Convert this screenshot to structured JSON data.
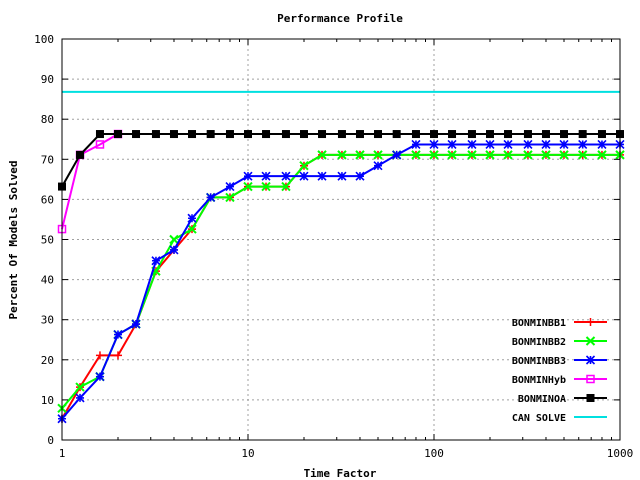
{
  "chart_data": {
    "type": "line",
    "title": "Performance Profile",
    "xlabel": "Time Factor",
    "ylabel": "Percent Of Models Solved",
    "xscale": "log",
    "xlim": [
      1,
      1000
    ],
    "ylim": [
      0,
      100
    ],
    "x_ticks": [
      1,
      10,
      100,
      1000
    ],
    "y_ticks": [
      0,
      10,
      20,
      30,
      40,
      50,
      60,
      70,
      80,
      90,
      100
    ],
    "grid": true,
    "legend_position": "bottom-right",
    "series": [
      {
        "name": "BONMINBB1",
        "color": "#ff0000",
        "marker": "plus",
        "x": [
          1,
          1.25,
          1.6,
          2,
          2.5,
          3.2,
          4,
          5,
          6.3,
          8,
          10,
          12.5,
          16,
          20,
          25,
          32,
          40,
          50,
          63,
          80,
          100,
          125,
          160,
          200,
          250,
          320,
          400,
          500,
          630,
          800,
          1000
        ],
        "y": [
          5.3,
          13.2,
          21.1,
          21.1,
          28.9,
          42.1,
          47.4,
          52.6,
          60.5,
          60.5,
          63.2,
          63.2,
          63.2,
          68.4,
          71.1,
          71.1,
          71.1,
          71.1,
          71.1,
          71.1,
          71.1,
          71.1,
          71.1,
          71.1,
          71.1,
          71.1,
          71.1,
          71.1,
          71.1,
          71.1,
          71.1
        ]
      },
      {
        "name": "BONMINBB2",
        "color": "#00ff00",
        "marker": "x",
        "x": [
          1,
          1.25,
          1.6,
          2,
          2.5,
          3.2,
          4,
          5,
          6.3,
          8,
          10,
          12.5,
          16,
          20,
          25,
          32,
          40,
          50,
          63,
          80,
          100,
          125,
          160,
          200,
          250,
          320,
          400,
          500,
          630,
          800,
          1000
        ],
        "y": [
          7.9,
          13.2,
          15.8,
          26.3,
          28.9,
          42.1,
          50.0,
          52.6,
          60.5,
          60.5,
          63.2,
          63.2,
          63.2,
          68.4,
          71.1,
          71.1,
          71.1,
          71.1,
          71.1,
          71.1,
          71.1,
          71.1,
          71.1,
          71.1,
          71.1,
          71.1,
          71.1,
          71.1,
          71.1,
          71.1,
          71.1
        ]
      },
      {
        "name": "BONMINBB3",
        "color": "#0000ff",
        "marker": "star",
        "x": [
          1,
          1.25,
          1.6,
          2,
          2.5,
          3.2,
          4,
          5,
          6.3,
          8,
          10,
          12.5,
          16,
          20,
          25,
          32,
          40,
          50,
          63,
          80,
          100,
          125,
          160,
          200,
          250,
          320,
          400,
          500,
          630,
          800,
          1000
        ],
        "y": [
          5.3,
          10.5,
          15.8,
          26.3,
          28.9,
          44.7,
          47.4,
          55.3,
          60.5,
          63.2,
          65.8,
          65.8,
          65.8,
          65.8,
          65.8,
          65.8,
          65.8,
          68.4,
          71.1,
          73.7,
          73.7,
          73.7,
          73.7,
          73.7,
          73.7,
          73.7,
          73.7,
          73.7,
          73.7,
          73.7,
          73.7
        ]
      },
      {
        "name": "BONMINHyb",
        "color": "#ff00ff",
        "marker": "square-open",
        "x": [
          1,
          1.25,
          1.6,
          2
        ],
        "y": [
          52.6,
          71.1,
          73.7,
          76.3
        ]
      },
      {
        "name": "BONMINOA",
        "color": "#000000",
        "marker": "square-filled",
        "x": [
          1,
          1.25,
          1.6,
          2,
          2.5,
          3.2,
          4,
          5,
          6.3,
          8,
          10,
          12.5,
          16,
          20,
          25,
          32,
          40,
          50,
          63,
          80,
          100,
          125,
          160,
          200,
          250,
          320,
          400,
          500,
          630,
          800,
          1000
        ],
        "y": [
          63.2,
          71.1,
          76.3,
          76.3,
          76.3,
          76.3,
          76.3,
          76.3,
          76.3,
          76.3,
          76.3,
          76.3,
          76.3,
          76.3,
          76.3,
          76.3,
          76.3,
          76.3,
          76.3,
          76.3,
          76.3,
          76.3,
          76.3,
          76.3,
          76.3,
          76.3,
          76.3,
          76.3,
          76.3,
          76.3,
          76.3
        ]
      },
      {
        "name": "CAN SOLVE",
        "color": "#00e0e0",
        "marker": "none",
        "x": [
          1,
          1000
        ],
        "y": [
          86.8,
          86.8
        ]
      }
    ]
  }
}
